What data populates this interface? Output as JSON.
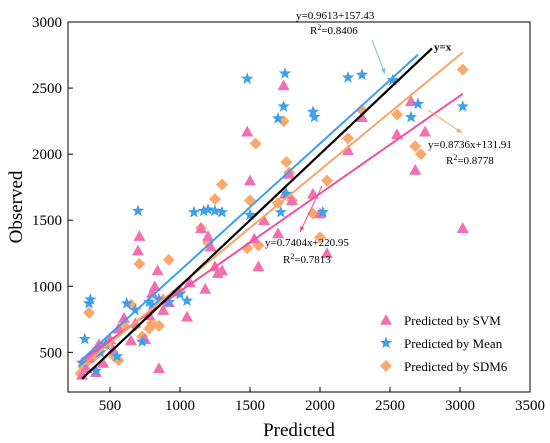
{
  "chart_data": {
    "type": "scatter",
    "xlabel": "Predicted",
    "ylabel": "Observed",
    "xlim": [
      200,
      3500
    ],
    "ylim": [
      200,
      3000
    ],
    "xticks": [
      500,
      1000,
      1500,
      2000,
      2500,
      3000,
      3500
    ],
    "yticks": [
      500,
      1000,
      1500,
      2000,
      2500,
      3000
    ],
    "grid": false,
    "legend_position": "bottom-right",
    "series": [
      {
        "name": "Predicted by SVM",
        "marker": "triangle",
        "color": "#f26fb0",
        "fit": {
          "slope": 0.7404,
          "intercept": 220.95,
          "x_range": [
            280,
            3020
          ]
        },
        "equation": "y=0.7404x+220.95",
        "r2_label": "R",
        "r2_value": "=0.7813",
        "points": [
          [
            300,
            330
          ],
          [
            330,
            380
          ],
          [
            350,
            460
          ],
          [
            380,
            500
          ],
          [
            400,
            350
          ],
          [
            420,
            560
          ],
          [
            450,
            420
          ],
          [
            500,
            600
          ],
          [
            520,
            520
          ],
          [
            560,
            680
          ],
          [
            600,
            760
          ],
          [
            650,
            590
          ],
          [
            680,
            720
          ],
          [
            700,
            1270
          ],
          [
            710,
            1380
          ],
          [
            750,
            600
          ],
          [
            780,
            780
          ],
          [
            800,
            950
          ],
          [
            820,
            1000
          ],
          [
            840,
            1120
          ],
          [
            850,
            380
          ],
          [
            880,
            820
          ],
          [
            920,
            880
          ],
          [
            980,
            960
          ],
          [
            1050,
            770
          ],
          [
            1070,
            1030
          ],
          [
            1150,
            1440
          ],
          [
            1180,
            980
          ],
          [
            1200,
            1380
          ],
          [
            1220,
            1300
          ],
          [
            1250,
            1150
          ],
          [
            1270,
            1100
          ],
          [
            1300,
            1120
          ],
          [
            1480,
            2170
          ],
          [
            1500,
            1800
          ],
          [
            1530,
            1360
          ],
          [
            1560,
            1150
          ],
          [
            1600,
            1500
          ],
          [
            1700,
            1400
          ],
          [
            1740,
            2520
          ],
          [
            1750,
            1700
          ],
          [
            1780,
            1850
          ],
          [
            1800,
            1650
          ],
          [
            1950,
            1700
          ],
          [
            2000,
            1550
          ],
          [
            2050,
            1250
          ],
          [
            2200,
            2030
          ],
          [
            2300,
            2280
          ],
          [
            2550,
            2150
          ],
          [
            2650,
            2400
          ],
          [
            2680,
            1880
          ],
          [
            2750,
            2170
          ],
          [
            3020,
            1440
          ]
        ]
      },
      {
        "name": "Predicted by Mean",
        "marker": "star",
        "color": "#3f9fe8",
        "fit": {
          "slope": 0.9613,
          "intercept": 157.43,
          "x_range": [
            280,
            2700
          ]
        },
        "equation": "y=0.9613+157.43",
        "r2_label": "R",
        "r2_value": "=0.8406",
        "points": [
          [
            300,
            420
          ],
          [
            320,
            600
          ],
          [
            350,
            870
          ],
          [
            360,
            900
          ],
          [
            400,
            360
          ],
          [
            430,
            500
          ],
          [
            470,
            560
          ],
          [
            550,
            470
          ],
          [
            620,
            870
          ],
          [
            680,
            820
          ],
          [
            700,
            1570
          ],
          [
            730,
            580
          ],
          [
            780,
            880
          ],
          [
            800,
            860
          ],
          [
            850,
            900
          ],
          [
            920,
            880
          ],
          [
            1000,
            940
          ],
          [
            1050,
            890
          ],
          [
            1100,
            1560
          ],
          [
            1170,
            1570
          ],
          [
            1200,
            1580
          ],
          [
            1250,
            1570
          ],
          [
            1300,
            1560
          ],
          [
            1480,
            2570
          ],
          [
            1500,
            1540
          ],
          [
            1700,
            2270
          ],
          [
            1720,
            1560
          ],
          [
            1740,
            2360
          ],
          [
            1750,
            2610
          ],
          [
            1760,
            1700
          ],
          [
            1950,
            2320
          ],
          [
            1960,
            2280
          ],
          [
            2020,
            1560
          ],
          [
            2200,
            2580
          ],
          [
            2300,
            2600
          ],
          [
            2520,
            2560
          ],
          [
            2650,
            2280
          ],
          [
            2700,
            2380
          ],
          [
            3020,
            2360
          ]
        ]
      },
      {
        "name": "Predicted by SDM6",
        "marker": "diamond",
        "color": "#f8a96e",
        "fit": {
          "slope": 0.8736,
          "intercept": 131.91,
          "x_range": [
            280,
            3020
          ]
        },
        "equation": "y=0.8736x+131.91",
        "r2_label": "R",
        "r2_value": "=0.8778",
        "points": [
          [
            290,
            340
          ],
          [
            310,
            400
          ],
          [
            330,
            420
          ],
          [
            350,
            800
          ],
          [
            380,
            460
          ],
          [
            420,
            500
          ],
          [
            480,
            560
          ],
          [
            530,
            470
          ],
          [
            560,
            440
          ],
          [
            600,
            700
          ],
          [
            650,
            860
          ],
          [
            680,
            700
          ],
          [
            710,
            1170
          ],
          [
            730,
            620
          ],
          [
            780,
            680
          ],
          [
            800,
            720
          ],
          [
            850,
            700
          ],
          [
            880,
            900
          ],
          [
            920,
            1200
          ],
          [
            1000,
            960
          ],
          [
            1150,
            1440
          ],
          [
            1200,
            1330
          ],
          [
            1250,
            1660
          ],
          [
            1300,
            1770
          ],
          [
            1480,
            1290
          ],
          [
            1500,
            1650
          ],
          [
            1540,
            2080
          ],
          [
            1560,
            1310
          ],
          [
            1700,
            1630
          ],
          [
            1740,
            2250
          ],
          [
            1760,
            1940
          ],
          [
            1780,
            1860
          ],
          [
            1800,
            1650
          ],
          [
            1950,
            1550
          ],
          [
            2000,
            1370
          ],
          [
            2050,
            1800
          ],
          [
            2200,
            2120
          ],
          [
            2300,
            2330
          ],
          [
            2550,
            2300
          ],
          [
            2680,
            2060
          ],
          [
            2720,
            2000
          ],
          [
            3020,
            2640
          ]
        ]
      }
    ],
    "reference_line": {
      "label": "y=x",
      "x_range": [
        300,
        2800
      ]
    }
  }
}
